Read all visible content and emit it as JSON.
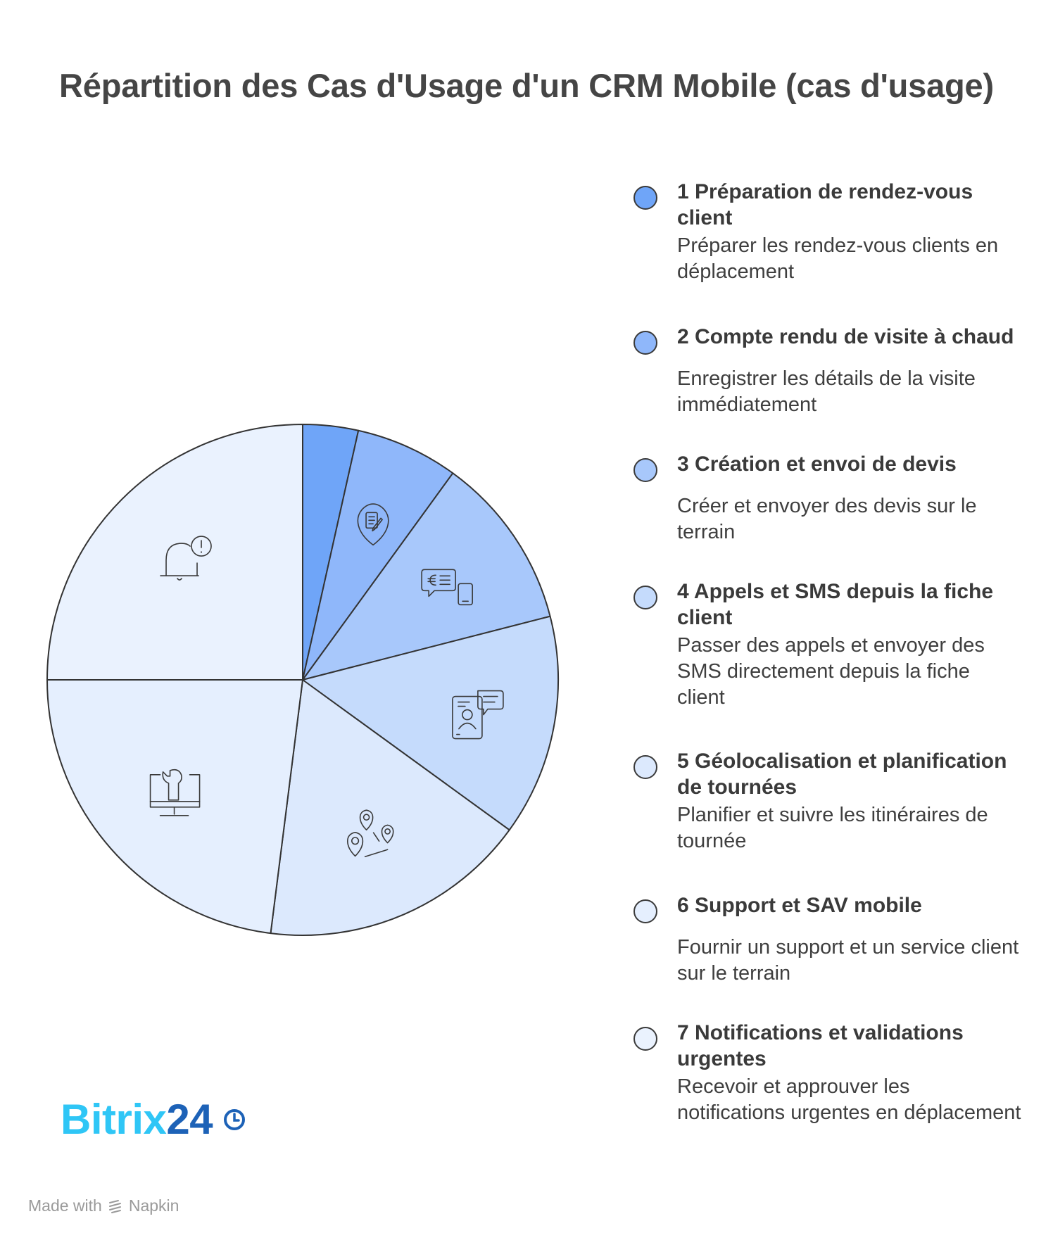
{
  "title": "Répartition des Cas d'Usage d'un CRM Mobile (cas d'usage)",
  "chart_data": {
    "type": "pie",
    "title": "Répartition des Cas d'Usage d'un CRM Mobile (cas d'usage)",
    "slices": [
      {
        "number": "1",
        "label": "Préparation de rendez-vous client",
        "description": "Préparer les rendez-vous clients en déplacement",
        "value": 3.5,
        "color": "#6fa5f8",
        "icon": "none"
      },
      {
        "number": "2",
        "label": "Compte rendu de visite à chaud",
        "description": "Enregistrer les détails de la visite immédiatement",
        "value": 6.5,
        "color": "#8fb7fa",
        "icon": "location-document-icon"
      },
      {
        "number": "3",
        "label": "Création et envoi de devis",
        "description": "Créer et envoyer des devis sur le terrain",
        "value": 11,
        "color": "#a8c8fb",
        "icon": "euro-message-phone-icon"
      },
      {
        "number": "4",
        "label": "Appels et SMS depuis la fiche client",
        "description": "Passer des appels et envoyer des SMS directement depuis la fiche client",
        "value": 14,
        "color": "#c5dbfc",
        "icon": "tablet-contact-message-icon"
      },
      {
        "number": "5",
        "label": "Géolocalisation et planification de tournées",
        "description": "Planifier et suivre les itinéraires de tournée",
        "value": 17,
        "color": "#dce9fd",
        "icon": "map-route-pins-icon"
      },
      {
        "number": "6",
        "label": "Support et SAV mobile",
        "description": "Fournir un support et un service client sur le terrain",
        "value": 23,
        "color": "#e5effe",
        "icon": "monitor-wrench-icon"
      },
      {
        "number": "7",
        "label": "Notifications et validations urgentes",
        "description": "Recevoir et approuver les notifications urgentes en déplacement",
        "value": 25,
        "color": "#eaf2fe",
        "icon": "bell-alert-icon"
      }
    ]
  },
  "branding": {
    "logo_part1": "Bitrix",
    "logo_part2": "24",
    "made_with": "Made with",
    "napkin": "Napkin"
  }
}
